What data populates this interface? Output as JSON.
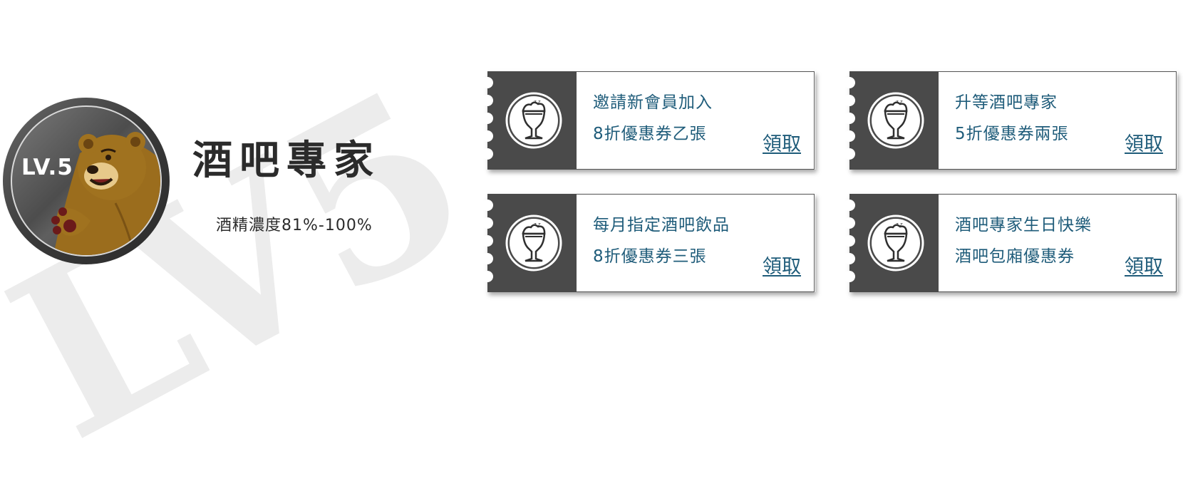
{
  "watermark": "LV5",
  "badge": {
    "level_label": "LV.5"
  },
  "level": {
    "title": "酒吧專家",
    "subtitle": "酒精濃度81%-100%"
  },
  "coupons": [
    {
      "line1": "邀請新會員加入",
      "line2": "8折優惠券乙張",
      "claim": "領取"
    },
    {
      "line1": "升等酒吧專家",
      "line2": "5折優惠券兩張",
      "claim": "領取"
    },
    {
      "line1": "每月指定酒吧飲品",
      "line2": "8折優惠券三張",
      "claim": "領取"
    },
    {
      "line1": "酒吧專家生日快樂",
      "line2": "酒吧包廂優惠券",
      "claim": "領取"
    }
  ],
  "colors": {
    "accent_text": "#1f5c7a",
    "stub": "#4a4a4a",
    "title": "#2b2b2b",
    "watermark": "#ececec"
  },
  "icons": {
    "coupon": "beer-glass-icon",
    "badge": "bear-mascot-icon"
  }
}
